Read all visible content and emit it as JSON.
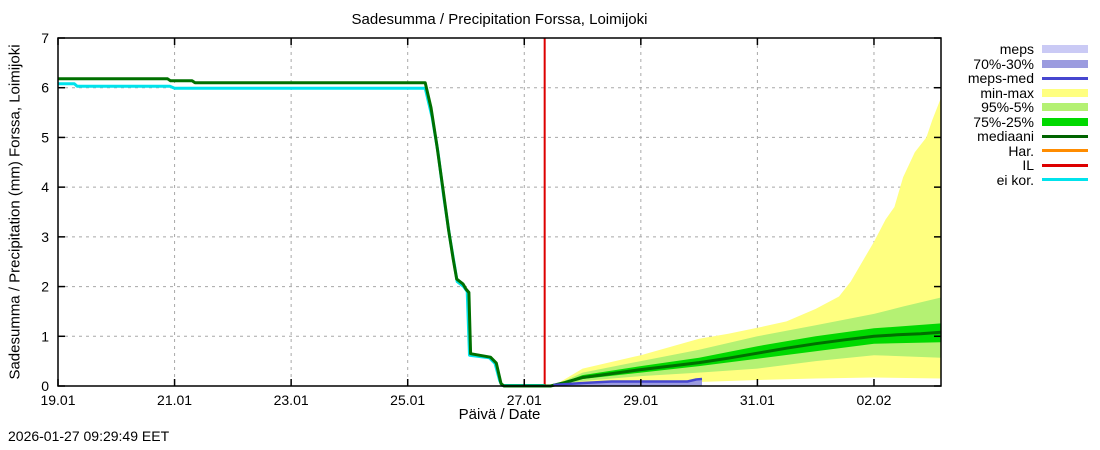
{
  "chart": {
    "title": "Sadesumma / Precipitation  Forssa, Loimijoki",
    "ylabel": "Sadesumma / Precipitation (mm)  Forssa, Loimijoki",
    "xlabel": "Päivä / Date",
    "timestamp": "2026-01-27 09:29:49 EET"
  },
  "chart_data": {
    "type": "area",
    "title": "Sadesumma / Precipitation  Forssa, Loimijoki",
    "xlabel": "Päivä / Date",
    "ylabel": "Sadesumma / Precipitation (mm)  Forssa, Loimijoki",
    "grid": true,
    "legend_position": "top-right-outside",
    "x_axis": {
      "tick_labels": [
        "19.01",
        "21.01",
        "23.01",
        "25.01",
        "27.01",
        "29.01",
        "31.01",
        "02.02"
      ],
      "tick_days": [
        0,
        2,
        4,
        6,
        8,
        10,
        12,
        14
      ],
      "range_days": [
        0,
        15.15
      ]
    },
    "y_axis": {
      "ticks": [
        0,
        1,
        2,
        3,
        4,
        5,
        6,
        7
      ],
      "range": [
        0,
        7
      ]
    },
    "vline": {
      "name": "IL",
      "day": 8.35,
      "color": "#dd0000"
    },
    "bands": [
      {
        "name": "min-max",
        "color": "#ffff80",
        "upper": [
          [
            8.5,
            0
          ],
          [
            9,
            0.35
          ],
          [
            10,
            0.62
          ],
          [
            11,
            0.95
          ],
          [
            11.5,
            1.05
          ],
          [
            12,
            1.17
          ],
          [
            12.5,
            1.3
          ],
          [
            13,
            1.55
          ],
          [
            13.4,
            1.8
          ],
          [
            13.6,
            2.1
          ],
          [
            13.8,
            2.5
          ],
          [
            14,
            2.9
          ],
          [
            14.2,
            3.35
          ],
          [
            14.35,
            3.6
          ],
          [
            14.5,
            4.2
          ],
          [
            14.7,
            4.7
          ],
          [
            14.9,
            5.0
          ],
          [
            15.0,
            5.35
          ],
          [
            15.15,
            5.8
          ]
        ],
        "lower": [
          [
            8.5,
            0
          ],
          [
            9,
            0.01
          ],
          [
            10,
            0.04
          ],
          [
            11,
            0.08
          ],
          [
            12,
            0.12
          ],
          [
            13,
            0.15
          ],
          [
            14,
            0.17
          ],
          [
            15.15,
            0.15
          ]
        ]
      },
      {
        "name": "95%-5%",
        "color": "#b4f173",
        "upper": [
          [
            8.5,
            0
          ],
          [
            9,
            0.27
          ],
          [
            10,
            0.5
          ],
          [
            11,
            0.73
          ],
          [
            12,
            1.0
          ],
          [
            13,
            1.22
          ],
          [
            14,
            1.45
          ],
          [
            14.5,
            1.6
          ],
          [
            15.15,
            1.78
          ]
        ],
        "lower": [
          [
            8.5,
            0
          ],
          [
            9,
            0.1
          ],
          [
            10,
            0.2
          ],
          [
            11,
            0.27
          ],
          [
            12,
            0.35
          ],
          [
            13,
            0.5
          ],
          [
            14,
            0.62
          ],
          [
            15.15,
            0.57
          ]
        ]
      },
      {
        "name": "75%-25%",
        "color": "#00d900",
        "upper": [
          [
            8.5,
            0
          ],
          [
            9,
            0.22
          ],
          [
            10,
            0.4
          ],
          [
            11,
            0.57
          ],
          [
            12,
            0.8
          ],
          [
            13,
            1.0
          ],
          [
            14,
            1.16
          ],
          [
            15.15,
            1.26
          ]
        ],
        "lower": [
          [
            8.5,
            0
          ],
          [
            9,
            0.14
          ],
          [
            10,
            0.27
          ],
          [
            11,
            0.4
          ],
          [
            12,
            0.55
          ],
          [
            13,
            0.7
          ],
          [
            14,
            0.85
          ],
          [
            15.15,
            0.88
          ]
        ]
      },
      {
        "name": "meps",
        "color": "#cacaf5",
        "upper": [
          [
            8.5,
            0
          ],
          [
            9,
            0.06
          ],
          [
            9.5,
            0.09
          ],
          [
            10.5,
            0.09
          ],
          [
            10.9,
            0.11
          ],
          [
            11.05,
            0.14
          ]
        ],
        "lower": [
          [
            8.5,
            0
          ],
          [
            11.05,
            0
          ]
        ]
      },
      {
        "name": "70%-30%",
        "color": "#9b9bdf",
        "upper": [
          [
            8.5,
            0
          ],
          [
            9,
            0.05
          ],
          [
            9.5,
            0.07
          ],
          [
            10.5,
            0.07
          ],
          [
            11.05,
            0.11
          ]
        ],
        "lower": [
          [
            8.5,
            0
          ],
          [
            11.05,
            0
          ]
        ]
      }
    ],
    "lines": [
      {
        "name": "ei kor.",
        "color": "#00e3ec",
        "width": 3,
        "points": [
          [
            0,
            6.08
          ],
          [
            0.28,
            6.08
          ],
          [
            0.33,
            6.03
          ],
          [
            1.92,
            6.03
          ],
          [
            2.0,
            5.99
          ],
          [
            6.3,
            5.99
          ],
          [
            6.42,
            5.4
          ],
          [
            6.52,
            4.7
          ],
          [
            6.62,
            3.8
          ],
          [
            6.72,
            3.0
          ],
          [
            6.8,
            2.45
          ],
          [
            6.85,
            2.1
          ],
          [
            6.96,
            2.0
          ],
          [
            7.02,
            1.9
          ],
          [
            7.06,
            0.62
          ],
          [
            7.4,
            0.57
          ],
          [
            7.5,
            0.45
          ],
          [
            7.58,
            0.1
          ],
          [
            7.62,
            0.01
          ],
          [
            8.35,
            0.01
          ]
        ]
      },
      {
        "name": "mediaani",
        "color": "#007000",
        "width": 3,
        "points": [
          [
            0,
            6.18
          ],
          [
            1.88,
            6.18
          ],
          [
            1.93,
            6.14
          ],
          [
            2.3,
            6.14
          ],
          [
            2.35,
            6.1
          ],
          [
            6.3,
            6.1
          ],
          [
            6.4,
            5.6
          ],
          [
            6.5,
            4.85
          ],
          [
            6.6,
            4.0
          ],
          [
            6.7,
            3.15
          ],
          [
            6.78,
            2.55
          ],
          [
            6.84,
            2.15
          ],
          [
            6.95,
            2.05
          ],
          [
            7.0,
            1.95
          ],
          [
            7.05,
            1.88
          ],
          [
            7.08,
            0.65
          ],
          [
            7.42,
            0.58
          ],
          [
            7.52,
            0.46
          ],
          [
            7.6,
            0.05
          ],
          [
            7.65,
            0
          ],
          [
            8.45,
            0
          ],
          [
            8.7,
            0.07
          ],
          [
            9,
            0.17
          ],
          [
            9.5,
            0.25
          ],
          [
            10,
            0.33
          ],
          [
            10.5,
            0.4
          ],
          [
            11,
            0.47
          ],
          [
            11.5,
            0.56
          ],
          [
            12,
            0.66
          ],
          [
            12.5,
            0.76
          ],
          [
            13,
            0.85
          ],
          [
            13.5,
            0.93
          ],
          [
            14,
            1.0
          ],
          [
            14.4,
            1.03
          ],
          [
            14.8,
            1.05
          ],
          [
            15.15,
            1.08
          ]
        ]
      },
      {
        "name": "meps-med",
        "color": "#4646cf",
        "width": 2.5,
        "points": [
          [
            8.5,
            0.02
          ],
          [
            9,
            0.06
          ],
          [
            9.5,
            0.09
          ],
          [
            10.8,
            0.09
          ],
          [
            10.95,
            0.13
          ],
          [
            11.05,
            0.14
          ]
        ]
      }
    ],
    "legend": [
      {
        "label": "meps",
        "type": "band",
        "color": "#cacaf5"
      },
      {
        "label": "70%-30%",
        "type": "band",
        "color": "#9b9bdf"
      },
      {
        "label": "meps-med",
        "type": "line",
        "color": "#4646cf"
      },
      {
        "label": "min-max",
        "type": "band",
        "color": "#ffff80"
      },
      {
        "label": "95%-5%",
        "type": "band",
        "color": "#b4f173"
      },
      {
        "label": "75%-25%",
        "type": "band",
        "color": "#00d900"
      },
      {
        "label": "mediaani",
        "type": "line",
        "color": "#006400"
      },
      {
        "label": "Har.",
        "type": "line",
        "color": "#ff8c00"
      },
      {
        "label": "IL",
        "type": "line",
        "color": "#dd0000"
      },
      {
        "label": "ei kor.",
        "type": "line",
        "color": "#00e3ec"
      }
    ],
    "colors": {
      "grid": "#a8a8a8",
      "axis": "#000000",
      "background": "#ffffff"
    }
  }
}
